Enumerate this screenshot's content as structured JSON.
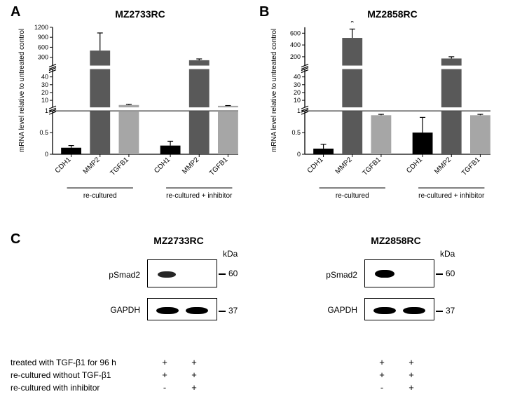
{
  "figure": {
    "panels": {
      "A": {
        "label": "A",
        "title": "MZ2733RC",
        "y_axis_label": "mRNA level relative to untreated control",
        "categories": [
          "CDH1",
          "MMP2",
          "TGFB1",
          "CDH1",
          "MMP2",
          "TGFB1"
        ],
        "values": [
          0.15,
          500,
          4,
          0.2,
          210,
          3
        ],
        "errors": [
          0.05,
          530,
          1,
          0.1,
          40,
          0.3
        ],
        "bar_colors": [
          "#000000",
          "#595959",
          "#a6a6a6",
          "#000000",
          "#595959",
          "#a6a6a6"
        ],
        "group_labels": [
          "re-cultured",
          "re-cultured + inhibitor"
        ],
        "broken_axis": {
          "lower": {
            "min": 0.0,
            "max": 1.0,
            "ticks": [
              0.0,
              0.5,
              1.0
            ]
          },
          "middle": {
            "min": 1,
            "max": 50,
            "ticks": [
              10,
              20,
              30,
              40
            ]
          },
          "upper": {
            "min": 50,
            "max": 1200,
            "ticks": [
              300,
              600,
              900,
              1200
            ]
          }
        },
        "bar_width": 0.7,
        "background_color": "#ffffff",
        "axis_color": "#000000",
        "label_fontsize": 10,
        "title_fontsize": 14
      },
      "B": {
        "label": "B",
        "title": "MZ2858RC",
        "y_axis_label": "mRNA level relative to untreated control",
        "categories": [
          "CDH1",
          "MMP2",
          "TGFB1",
          "CDH1",
          "MMP2",
          "TGFB1"
        ],
        "values": [
          0.13,
          520,
          0.9,
          0.5,
          170,
          0.9
        ],
        "errors": [
          0.1,
          150,
          0.02,
          0.35,
          30,
          0.02
        ],
        "bar_colors": [
          "#000000",
          "#595959",
          "#a6a6a6",
          "#000000",
          "#595959",
          "#a6a6a6"
        ],
        "group_labels": [
          "re-cultured",
          "re-cultured + inhibitor"
        ],
        "significance": [
          null,
          "*",
          null,
          null,
          null,
          null
        ],
        "broken_axis": {
          "lower": {
            "min": 0.0,
            "max": 1.0,
            "ticks": [
              0.0,
              0.5,
              1.0
            ]
          },
          "middle": {
            "min": 1,
            "max": 50,
            "ticks": [
              10,
              20,
              30,
              40
            ]
          },
          "upper": {
            "min": 50,
            "max": 700,
            "ticks": [
              200,
              400,
              600
            ]
          }
        },
        "bar_width": 0.7,
        "background_color": "#ffffff",
        "axis_color": "#000000",
        "label_fontsize": 10,
        "title_fontsize": 14
      },
      "C": {
        "label": "C",
        "titles": [
          "MZ2733RC",
          "MZ2858RC"
        ],
        "proteins": [
          "pSmad2",
          "GAPDH"
        ],
        "mw_labels": [
          "60",
          "37"
        ],
        "kda_label": "kDa",
        "blots": {
          "MZ2733RC": {
            "pSmad2": {
              "lane1": "positive",
              "lane2": "negative",
              "mw": 60
            },
            "GAPDH": {
              "lane1": "positive",
              "lane2": "positive",
              "mw": 37
            }
          },
          "MZ2858RC": {
            "pSmad2": {
              "lane1": "positive",
              "lane2": "negative",
              "mw": 60
            },
            "GAPDH": {
              "lane1": "positive",
              "lane2": "positive",
              "mw": 37
            }
          }
        },
        "condition_rows": [
          {
            "label": "treated with TGF-β1 for 96 h",
            "lanes_left": [
              "+",
              "+"
            ],
            "lanes_right": [
              "+",
              "+"
            ]
          },
          {
            "label": "re-cultured without TGF-β1",
            "lanes_left": [
              "+",
              "+"
            ],
            "lanes_right": [
              "+",
              "+"
            ]
          },
          {
            "label": "re-cultured with inhibitor",
            "lanes_left": [
              "-",
              "+"
            ],
            "lanes_right": [
              "-",
              "+"
            ]
          }
        ],
        "box_border_color": "#000000",
        "band_color": "#1a1a1a",
        "background_color": "#ffffff"
      }
    }
  }
}
